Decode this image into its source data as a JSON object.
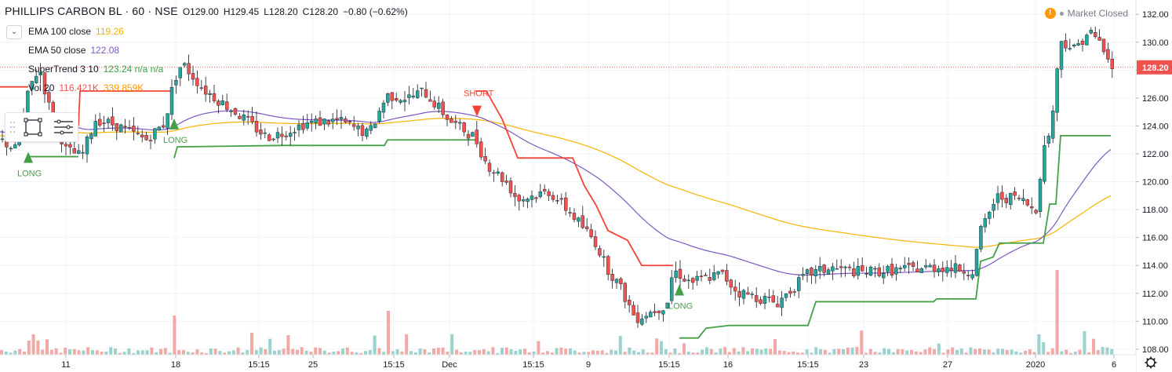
{
  "header": {
    "symbol": "PHILLIPS CARBON BL · 60 · NSE",
    "open": "O129.00",
    "high": "H129.45",
    "low": "L128.20",
    "close": "C128.20",
    "change": "−0.80 (−0.62%)"
  },
  "indicators": [
    {
      "name": "EMA 100 close",
      "value": "119.26",
      "color": "#f5b400"
    },
    {
      "name": "EMA 50 close",
      "value": "122.08",
      "color": "#7e57c2"
    },
    {
      "name": "SuperTrend 3 10",
      "value": "123.24  n/a  n/a",
      "color": "#43a047"
    },
    {
      "name": "Vol 20",
      "value": "116.421K",
      "value2": "339.859K",
      "color": "#ef5350",
      "color2": "#ff9800"
    }
  ],
  "status": {
    "market": "Market Closed"
  },
  "last_price_label": "128.20",
  "colors": {
    "up": "#26a69a",
    "down": "#ef5350",
    "ema100": "#f5b400",
    "ema50": "#7e57c2",
    "st_up": "#43a047",
    "st_down": "#f44336"
  },
  "chart_data": {
    "type": "candlestick",
    "yaxis": {
      "min": 107.6,
      "max": 132.8,
      "ticks": [
        "108.00",
        "110.00",
        "112.00",
        "114.00",
        "116.00",
        "118.00",
        "120.00",
        "122.00",
        "124.00",
        "126.00",
        "128.00",
        "130.00",
        "132.00"
      ]
    },
    "xaxis": {
      "ticks": [
        "11",
        "18",
        "15:15",
        "25",
        "15:15",
        "Dec",
        "15:15",
        "9",
        "15:15",
        "16",
        "15:15",
        "23",
        "27",
        "2020",
        "6"
      ]
    },
    "series_approx": [
      {
        "name": "Price (close, approx per session)",
        "points": [
          [
            "11",
            122.6
          ],
          [
            "18",
            124.5
          ],
          [
            "15:15",
            125.0
          ],
          [
            "25",
            123.5
          ],
          [
            "15:15",
            124.0
          ],
          [
            "Dec",
            124.0
          ],
          [
            "15:15",
            118.8
          ],
          [
            "9",
            114.0
          ],
          [
            "15:15",
            112.5
          ],
          [
            "16",
            113.4
          ],
          [
            "15:15",
            113.4
          ],
          [
            "23",
            114.0
          ],
          [
            "27",
            114.5
          ],
          [
            "2020",
            118.0
          ],
          [
            "6",
            128.2
          ]
        ]
      }
    ],
    "signals": [
      {
        "label": "LONG",
        "price": 121.5
      },
      {
        "label": "LONG",
        "price": 123.9
      },
      {
        "label": "SHORT",
        "price": 126.5
      },
      {
        "label": "LONG",
        "price": 112.0
      }
    ],
    "volume_axis": "bottom overlay",
    "last_price": 128.2
  }
}
